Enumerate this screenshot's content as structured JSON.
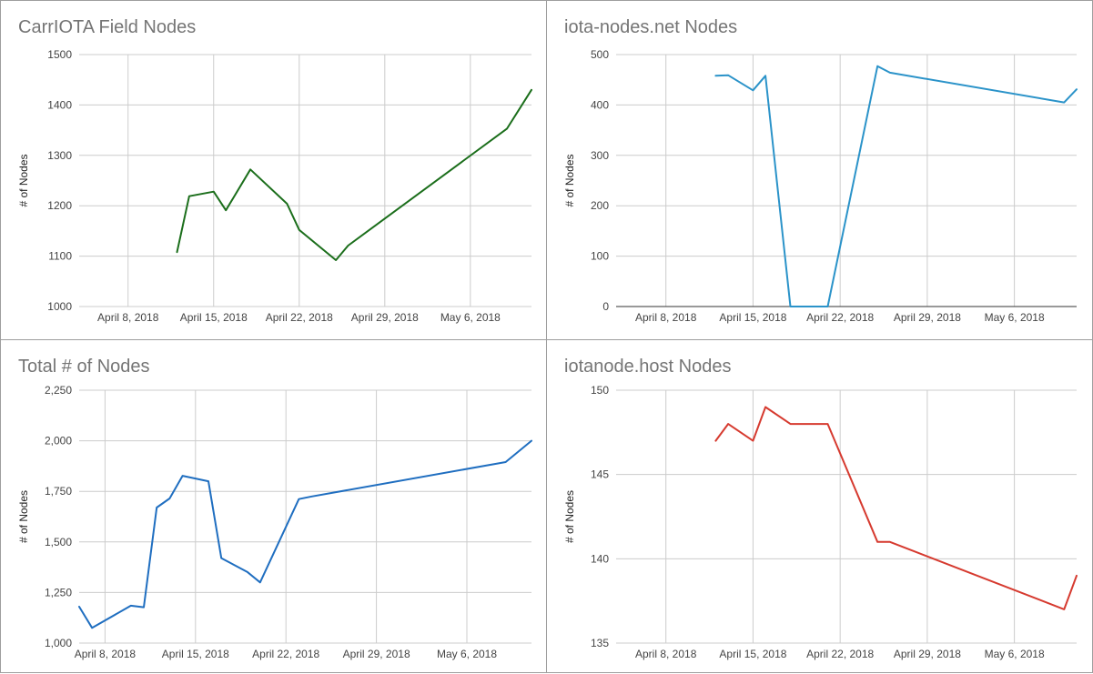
{
  "chart_data": [
    {
      "type": "line",
      "title": "CarrIOTA Field Nodes",
      "ylabel": "# of Nodes",
      "xlabel": "",
      "ylim": [
        1000,
        1500
      ],
      "xlim": [
        "2018-04-04",
        "2018-05-11"
      ],
      "yticks": [
        1000,
        1100,
        1200,
        1300,
        1400,
        1500
      ],
      "xticks": [
        {
          "date": "2018-04-08",
          "label": "April 8, 2018"
        },
        {
          "date": "2018-04-15",
          "label": "April 15, 2018"
        },
        {
          "date": "2018-04-22",
          "label": "April 22, 2018"
        },
        {
          "date": "2018-04-29",
          "label": "April 29, 2018"
        },
        {
          "date": "2018-05-06",
          "label": "May 6, 2018"
        }
      ],
      "grid": true,
      "color": "#1b6e1b",
      "series": [
        {
          "x": [
            "2018-04-12",
            "2018-04-13",
            "2018-04-15",
            "2018-04-16",
            "2018-04-18",
            "2018-04-21",
            "2018-04-22",
            "2018-04-25",
            "2018-04-26",
            "2018-05-09",
            "2018-05-11"
          ],
          "y": [
            1108,
            1219,
            1228,
            1191,
            1272,
            1204,
            1152,
            1092,
            1121,
            1353,
            1430
          ]
        }
      ]
    },
    {
      "type": "line",
      "title": "iota-nodes.net Nodes",
      "ylabel": "# of Nodes",
      "xlabel": "",
      "ylim": [
        0,
        500
      ],
      "xlim": [
        "2018-04-04",
        "2018-05-11"
      ],
      "yticks": [
        0,
        100,
        200,
        300,
        400,
        500
      ],
      "xticks": [
        {
          "date": "2018-04-08",
          "label": "April 8, 2018"
        },
        {
          "date": "2018-04-15",
          "label": "April 15, 2018"
        },
        {
          "date": "2018-04-22",
          "label": "April 22, 2018"
        },
        {
          "date": "2018-04-29",
          "label": "April 29, 2018"
        },
        {
          "date": "2018-05-06",
          "label": "May 6, 2018"
        }
      ],
      "grid": true,
      "color": "#2b93c9",
      "series": [
        {
          "x": [
            "2018-04-12",
            "2018-04-13",
            "2018-04-15",
            "2018-04-16",
            "2018-04-18",
            "2018-04-21",
            "2018-04-25",
            "2018-04-26",
            "2018-05-10",
            "2018-05-11"
          ],
          "y": [
            458,
            459,
            429,
            458,
            0,
            0,
            477,
            464,
            405,
            431
          ]
        }
      ]
    },
    {
      "type": "line",
      "title": "Total # of Nodes",
      "ylabel": "# of Nodes",
      "xlabel": "",
      "ylim": [
        1000,
        2250
      ],
      "xlim": [
        "2018-04-06",
        "2018-05-11"
      ],
      "yticks": [
        "1,000",
        "1,250",
        "1,500",
        "1,750",
        "2,000",
        "2,250"
      ],
      "xticks": [
        {
          "date": "2018-04-08",
          "label": "April 8, 2018"
        },
        {
          "date": "2018-04-15",
          "label": "April 15, 2018"
        },
        {
          "date": "2018-04-22",
          "label": "April 22, 2018"
        },
        {
          "date": "2018-04-29",
          "label": "April 29, 2018"
        },
        {
          "date": "2018-05-06",
          "label": "May 6, 2018"
        }
      ],
      "grid": true,
      "color": "#1f6ec0",
      "series": [
        {
          "x": [
            "2018-04-06",
            "2018-04-07",
            "2018-04-10",
            "2018-04-11",
            "2018-04-12",
            "2018-04-13",
            "2018-04-14",
            "2018-04-16",
            "2018-04-17",
            "2018-04-19",
            "2018-04-20",
            "2018-04-23",
            "2018-04-24",
            "2018-05-09",
            "2018-05-11"
          ],
          "y": [
            1180,
            1075,
            1185,
            1177,
            1670,
            1715,
            1827,
            1800,
            1420,
            1352,
            1300,
            1712,
            1725,
            1895,
            2000
          ]
        }
      ]
    },
    {
      "type": "line",
      "title": "iotanode.host Nodes",
      "ylabel": "# of Nodes",
      "xlabel": "",
      "ylim": [
        135,
        150
      ],
      "xlim": [
        "2018-04-04",
        "2018-05-11"
      ],
      "yticks": [
        135,
        140,
        145,
        150
      ],
      "xticks": [
        {
          "date": "2018-04-08",
          "label": "April 8, 2018"
        },
        {
          "date": "2018-04-15",
          "label": "April 15, 2018"
        },
        {
          "date": "2018-04-22",
          "label": "April 22, 2018"
        },
        {
          "date": "2018-04-29",
          "label": "April 29, 2018"
        },
        {
          "date": "2018-05-06",
          "label": "May 6, 2018"
        }
      ],
      "grid": true,
      "color": "#d63a2f",
      "series": [
        {
          "x": [
            "2018-04-12",
            "2018-04-13",
            "2018-04-15",
            "2018-04-16",
            "2018-04-18",
            "2018-04-21",
            "2018-04-25",
            "2018-04-26",
            "2018-05-10",
            "2018-05-11"
          ],
          "y": [
            147,
            148,
            147,
            149,
            148,
            148,
            141,
            141,
            137,
            139
          ]
        }
      ]
    }
  ]
}
